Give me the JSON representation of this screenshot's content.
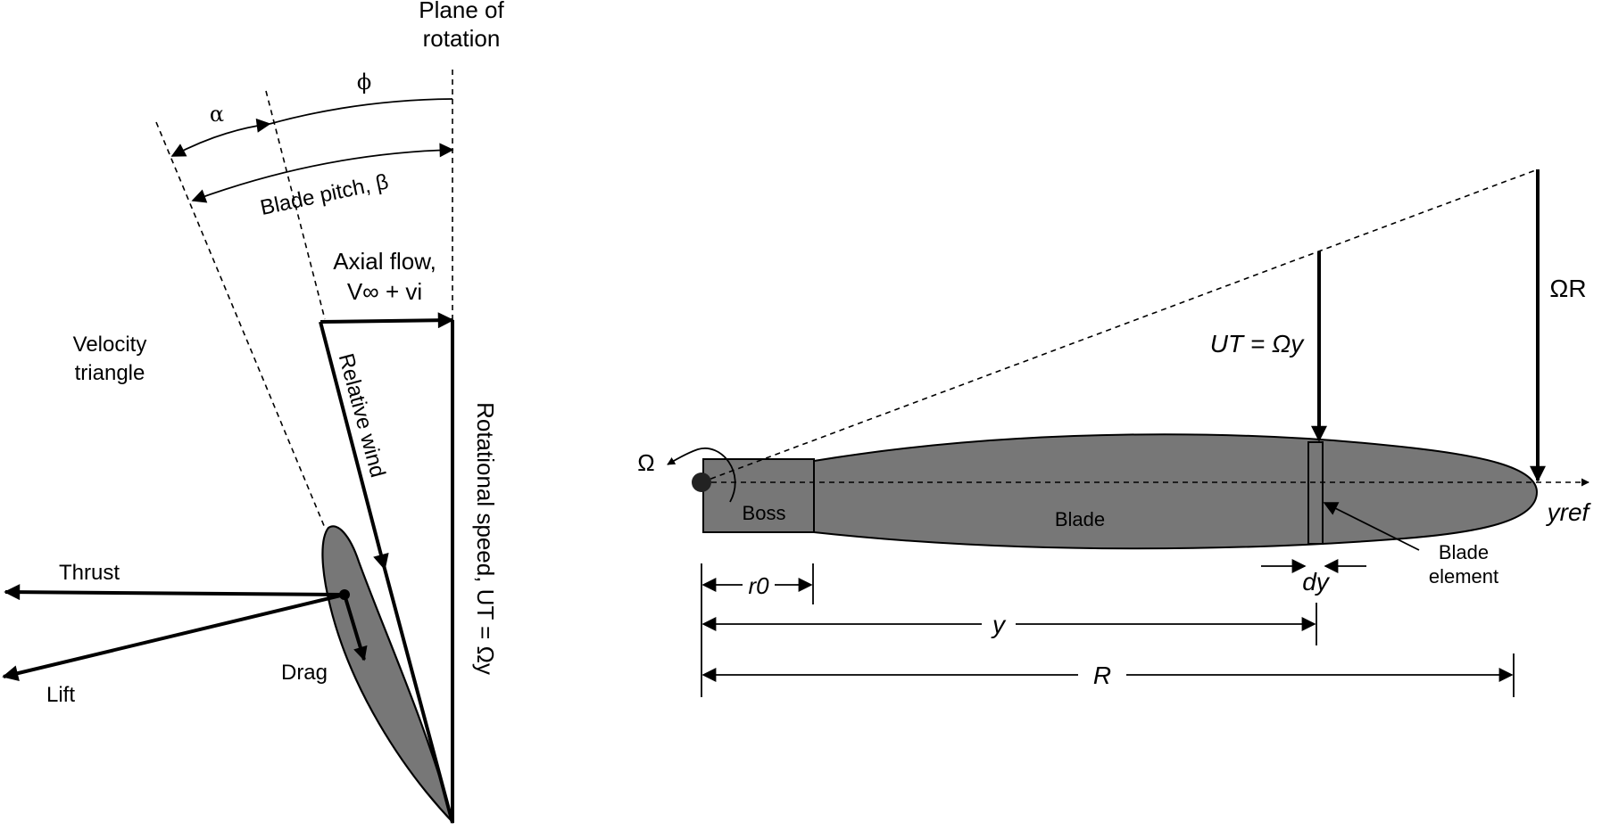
{
  "left": {
    "plane_of_rotation": [
      "Plane of",
      "rotation"
    ],
    "phi": "ϕ",
    "alpha": "α",
    "blade_pitch": "Blade pitch, β",
    "axial_flow": [
      "Axial flow,",
      "V∞ + vi"
    ],
    "velocity_triangle": [
      "Velocity",
      "triangle"
    ],
    "relative_wind": "Relative wind",
    "rotational_speed": "Rotational speed, UT = Ωy",
    "thrust": "Thrust",
    "lift": "Lift",
    "drag": "Drag"
  },
  "right": {
    "omega": "Ω",
    "omega_r": "ΩR",
    "ut_omega_y": "UT = Ωy",
    "boss": "Boss",
    "blade": "Blade",
    "blade_element": [
      "Blade",
      "element"
    ],
    "y_ref": "yref",
    "r0": "r0",
    "dy": "dy",
    "y": "y",
    "R": "R"
  }
}
